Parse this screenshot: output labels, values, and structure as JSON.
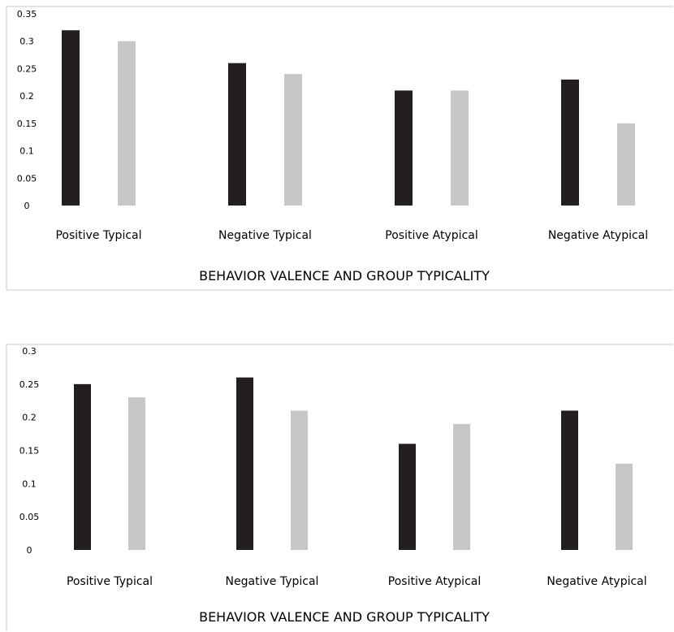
{
  "chart_data": [
    {
      "type": "bar",
      "categories": [
        "Positive Typical",
        "Negative Typical",
        "Positive Atypical",
        "Negative Atypical"
      ],
      "series": [
        {
          "values": [
            0.32,
            0.26,
            0.21,
            0.23
          ],
          "color": "#231f20"
        },
        {
          "values": [
            0.3,
            0.24,
            0.21,
            0.15
          ],
          "color": "#c6c7c8"
        }
      ],
      "xlabel": "BEHAVIOR VALENCE AND GROUP TYPICALITY",
      "ylabel": "",
      "ylim": [
        0,
        0.35
      ],
      "yticks": [
        "0",
        "0.05",
        "0.1",
        "0.15",
        "0.2",
        "0.25",
        "0.3",
        "0.35"
      ],
      "grid": false
    },
    {
      "type": "bar",
      "categories": [
        "Positive Typical",
        "Negative Typical",
        "Positive Atypical",
        "Negative Atypical"
      ],
      "series": [
        {
          "values": [
            0.25,
            0.26,
            0.16,
            0.21
          ],
          "color": "#231f20"
        },
        {
          "values": [
            0.23,
            0.21,
            0.19,
            0.13
          ],
          "color": "#c6c7c8"
        }
      ],
      "xlabel": "BEHAVIOR VALENCE AND GROUP TYPICALITY",
      "ylabel": "",
      "ylim": [
        0,
        0.3
      ],
      "yticks": [
        "0",
        "0.05",
        "0.1",
        "0.15",
        "0.2",
        "0.25",
        "0.3"
      ],
      "grid": false
    }
  ]
}
